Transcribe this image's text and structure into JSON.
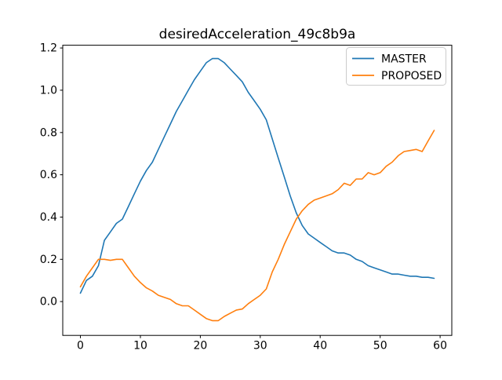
{
  "colors": {
    "master": "#1f77b4",
    "proposed": "#ff7f0e",
    "axis": "#000000",
    "legend_border": "#cccccc",
    "background": "#ffffff"
  },
  "chart_data": {
    "type": "line",
    "title": "desiredAcceleration_49c8b9a",
    "xlabel": "",
    "ylabel": "",
    "grid": false,
    "legend": {
      "position": "upper right",
      "entries": [
        "MASTER",
        "PROPOSED"
      ]
    },
    "xlim": [
      -2.95,
      61.95
    ],
    "ylim": [
      -0.16,
      1.213
    ],
    "xticks": {
      "values": [
        0,
        10,
        20,
        30,
        40,
        50,
        60
      ],
      "labels": [
        "0",
        "10",
        "20",
        "30",
        "40",
        "50",
        "60"
      ]
    },
    "yticks": {
      "values": [
        0.0,
        0.2,
        0.4,
        0.6,
        0.8,
        1.0,
        1.2
      ],
      "labels": [
        "0.0",
        "0.2",
        "0.4",
        "0.6",
        "0.8",
        "1.0",
        "1.2"
      ]
    },
    "x": [
      0,
      1,
      2,
      3,
      4,
      5,
      6,
      7,
      8,
      9,
      10,
      11,
      12,
      13,
      14,
      15,
      16,
      17,
      18,
      19,
      20,
      21,
      22,
      23,
      24,
      25,
      26,
      27,
      28,
      29,
      30,
      31,
      32,
      33,
      34,
      35,
      36,
      37,
      38,
      39,
      40,
      41,
      42,
      43,
      44,
      45,
      46,
      47,
      48,
      49,
      50,
      51,
      52,
      53,
      54,
      55,
      56,
      57,
      58,
      59
    ],
    "series": [
      {
        "name": "MASTER",
        "color": "#1f77b4",
        "values": [
          0.04,
          0.1,
          0.12,
          0.17,
          0.29,
          0.33,
          0.37,
          0.39,
          0.45,
          0.51,
          0.57,
          0.62,
          0.66,
          0.72,
          0.78,
          0.84,
          0.9,
          0.95,
          1.0,
          1.05,
          1.09,
          1.13,
          1.15,
          1.15,
          1.13,
          1.1,
          1.07,
          1.04,
          0.99,
          0.95,
          0.91,
          0.86,
          0.77,
          0.68,
          0.59,
          0.5,
          0.42,
          0.36,
          0.32,
          0.3,
          0.28,
          0.26,
          0.24,
          0.23,
          0.23,
          0.22,
          0.2,
          0.19,
          0.17,
          0.16,
          0.15,
          0.14,
          0.13,
          0.13,
          0.125,
          0.12,
          0.12,
          0.115,
          0.115,
          0.11
        ]
      },
      {
        "name": "PROPOSED",
        "color": "#ff7f0e",
        "values": [
          0.07,
          0.12,
          0.16,
          0.2,
          0.2,
          0.195,
          0.2,
          0.2,
          0.16,
          0.12,
          0.09,
          0.065,
          0.05,
          0.03,
          0.02,
          0.01,
          -0.01,
          -0.02,
          -0.02,
          -0.04,
          -0.06,
          -0.08,
          -0.09,
          -0.09,
          -0.07,
          -0.055,
          -0.04,
          -0.035,
          -0.01,
          0.01,
          0.03,
          0.06,
          0.14,
          0.2,
          0.27,
          0.33,
          0.39,
          0.43,
          0.46,
          0.48,
          0.49,
          0.5,
          0.51,
          0.53,
          0.56,
          0.55,
          0.58,
          0.58,
          0.61,
          0.6,
          0.61,
          0.64,
          0.66,
          0.69,
          0.71,
          0.715,
          0.72,
          0.71,
          0.76,
          0.81
        ]
      }
    ]
  }
}
